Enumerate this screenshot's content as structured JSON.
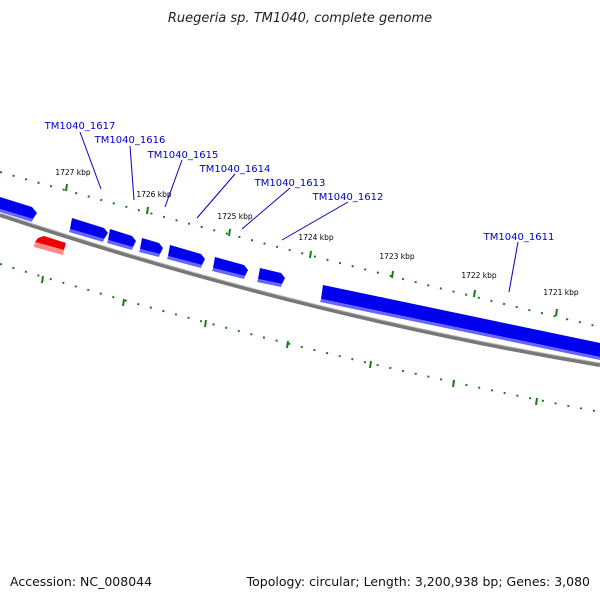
{
  "title": "Ruegeria sp. TM1040, complete genome",
  "footer": {
    "accession": "Accession: NC_008044",
    "summary": "Topology: circular; Length: 3,200,938 bp; Genes: 3,080"
  },
  "colors": {
    "forward_gene": "#0000ee",
    "reverse_gene": "#ee0000",
    "backbone": "#777777",
    "tick": "#1a7a1a",
    "label": "#0000cc"
  },
  "scale_labels": [
    "1727 kbp",
    "1726 kbp",
    "1725 kbp",
    "1724 kbp",
    "1723 kbp",
    "1722 kbp",
    "1721 kbp"
  ],
  "gene_labels": [
    "TM1040_1617",
    "TM1040_1616",
    "TM1040_1615",
    "TM1040_1614",
    "TM1040_1613",
    "TM1040_1612",
    "TM1040_1611"
  ]
}
